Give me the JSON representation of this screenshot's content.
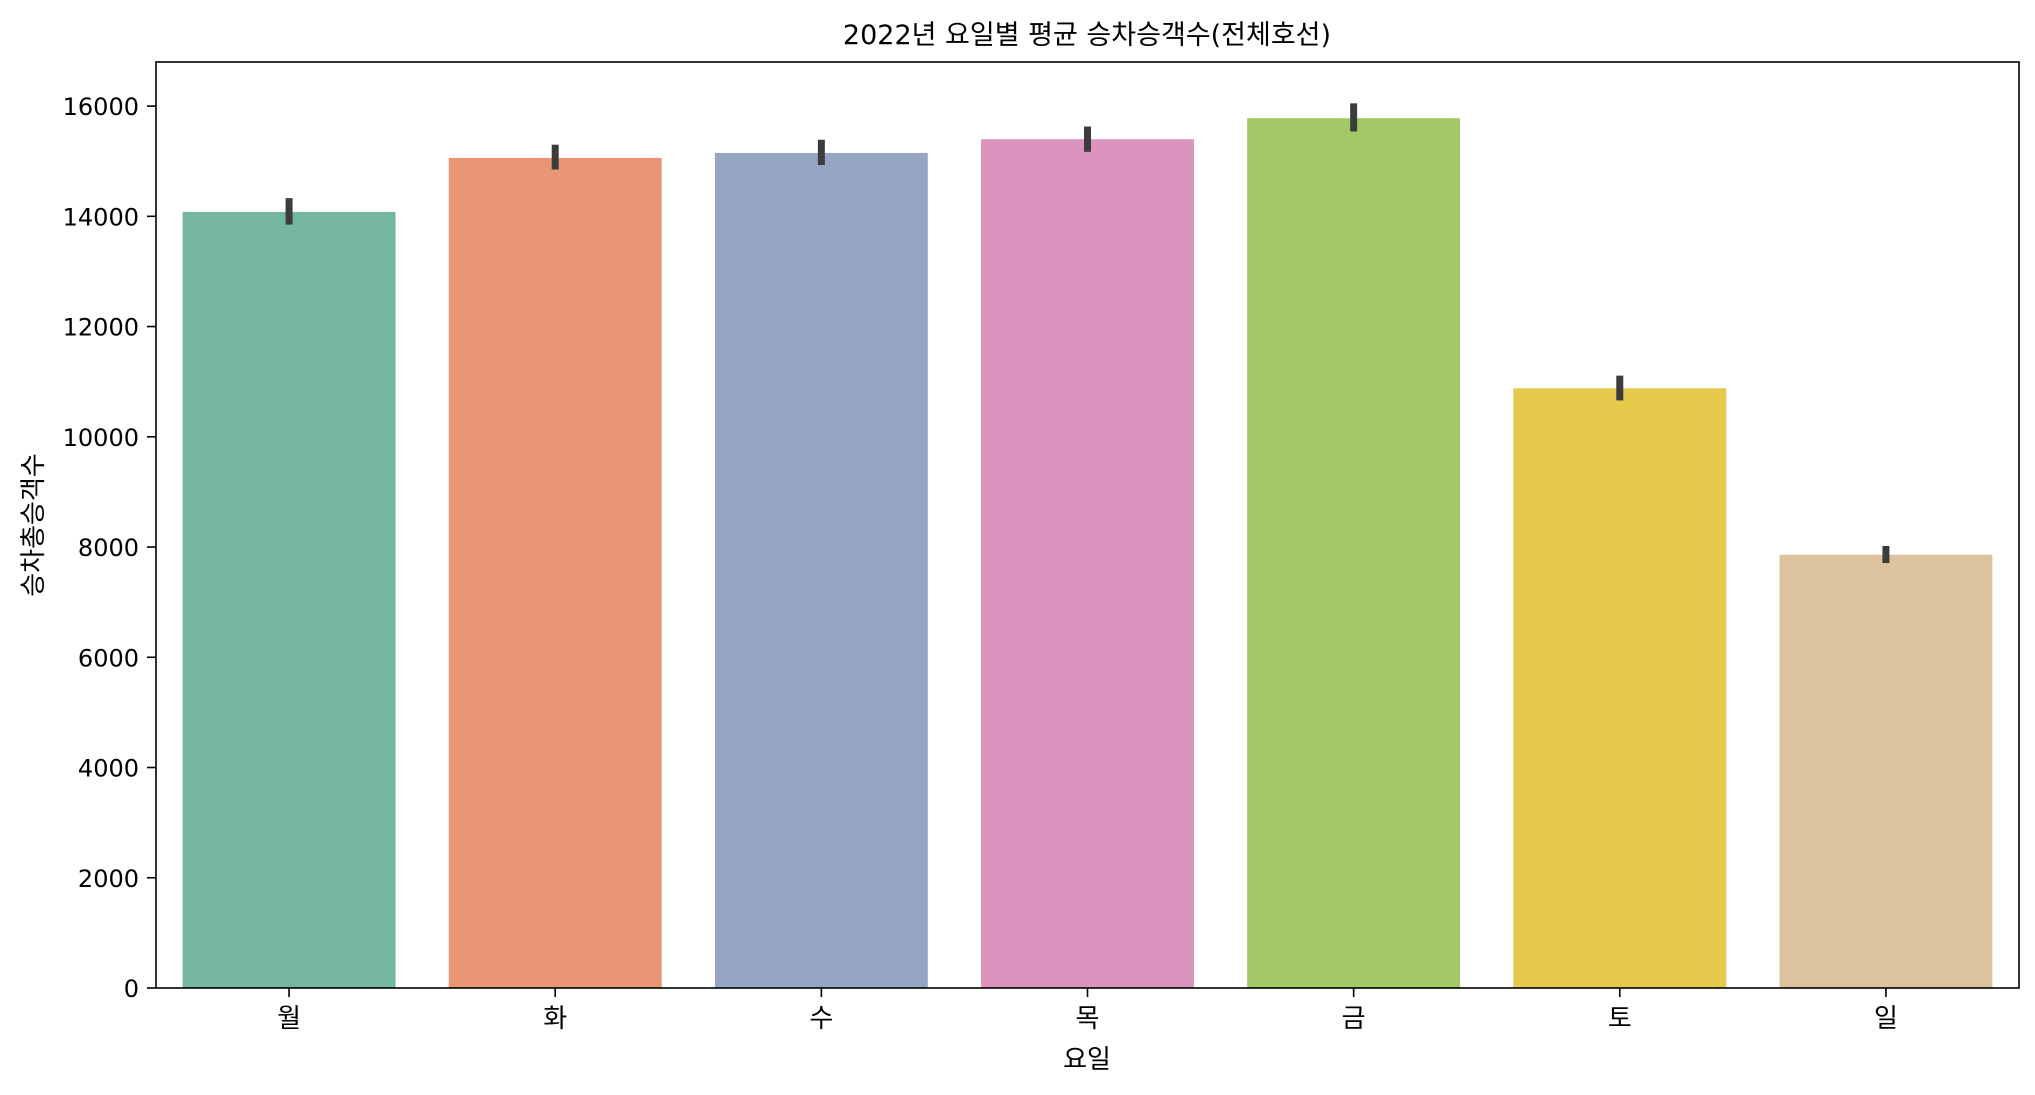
{
  "chart_data": {
    "type": "bar",
    "title": "2022년 요일별 평균 승차승객수(전체호선)",
    "xlabel": "요일",
    "ylabel": "승차총승객수",
    "categories": [
      "월",
      "화",
      "수",
      "목",
      "금",
      "토",
      "일"
    ],
    "values": [
      14080,
      15060,
      15150,
      15400,
      15780,
      10880,
      7860
    ],
    "error_bars": [
      {
        "low": 13850,
        "high": 14330
      },
      {
        "low": 14850,
        "high": 15300
      },
      {
        "low": 14930,
        "high": 15390
      },
      {
        "low": 15170,
        "high": 15630
      },
      {
        "low": 15540,
        "high": 16050
      },
      {
        "low": 10660,
        "high": 11110
      },
      {
        "low": 7710,
        "high": 8020
      }
    ],
    "bar_colors": [
      "#74b6a0",
      "#e99675",
      "#95a5c3",
      "#dc94bf",
      "#a2c965",
      "#e5c94b",
      "#dcc39e"
    ],
    "error_bar_color": "#3c3c3c",
    "ylim": [
      0,
      16800
    ],
    "yticks": [
      0,
      2000,
      4000,
      6000,
      8000,
      10000,
      12000,
      14000,
      16000
    ],
    "grid": false,
    "legend": "none"
  }
}
